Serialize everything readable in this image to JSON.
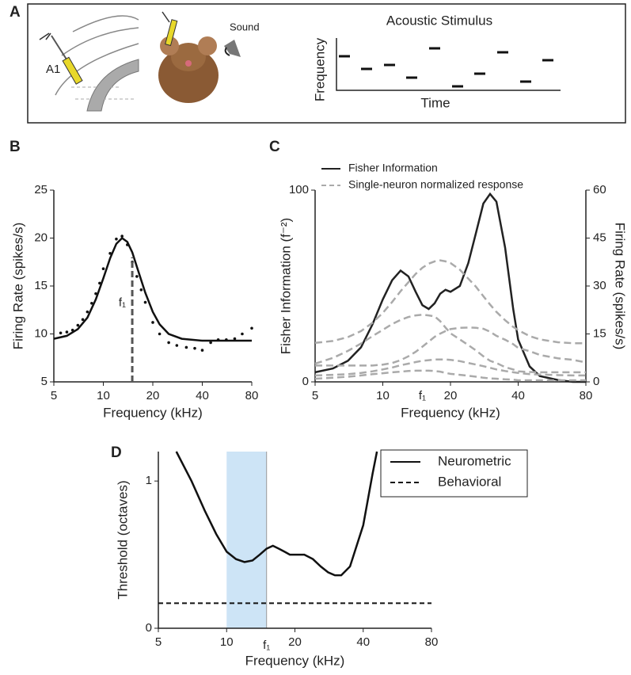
{
  "panels": [
    "A",
    "B",
    "C",
    "D"
  ],
  "schematic": {
    "region_label": "A1",
    "sound_label": "Sound",
    "stimulus_title": "Acoustic Stimulus",
    "stimulus_ylabel": "Frequency",
    "stimulus_xlabel": "Time"
  },
  "chart_data": [
    {
      "type": "line",
      "panel": "B",
      "xlabel": "Frequency (kHz)",
      "ylabel": "Firing Rate (spikes/s)",
      "xscale": "log",
      "xlim": [
        5,
        80
      ],
      "xticks": [
        5,
        10,
        20,
        40,
        80
      ],
      "ylim": [
        5,
        25
      ],
      "yticks": [
        5,
        10,
        15,
        20,
        25
      ],
      "annotations": [
        {
          "text": "f₁",
          "x": 15,
          "line_top": 18
        }
      ],
      "series": [
        {
          "color": "#111111",
          "style": "solid",
          "x": [
            5,
            6,
            7,
            8,
            9,
            10,
            11,
            12,
            13,
            14,
            15,
            16,
            18,
            20,
            22,
            25,
            30,
            40,
            60,
            80
          ],
          "values": [
            9.5,
            9.8,
            10.5,
            11.7,
            13.6,
            15.8,
            17.9,
            19.4,
            20,
            19.6,
            18.5,
            17,
            14.3,
            12.3,
            11,
            10,
            9.5,
            9.3,
            9.3,
            9.3
          ]
        },
        {
          "color": "#111111",
          "style": "dots",
          "x": [
            5.5,
            6,
            6.5,
            7,
            7.5,
            8,
            8.5,
            9,
            9.5,
            10,
            11,
            12,
            13,
            14,
            15,
            16,
            17,
            18,
            20,
            22,
            25,
            28,
            32,
            36,
            40,
            45,
            50,
            56,
            63,
            70,
            80
          ],
          "values": [
            10.1,
            10.2,
            10.4,
            10.9,
            11.5,
            12.3,
            13.2,
            14.2,
            15.3,
            16.8,
            18.4,
            19.9,
            20.2,
            19.3,
            17.5,
            16,
            14.6,
            13.3,
            11.2,
            10,
            9.1,
            8.8,
            8.6,
            8.5,
            8.3,
            9.1,
            9.4,
            9.4,
            9.5,
            10,
            10.6
          ]
        }
      ]
    },
    {
      "type": "line",
      "panel": "C",
      "xlabel": "Frequency (kHz)",
      "ylabel": "Fisher Information (f⁻²)",
      "y2label": "Firing Rate (spikes/s)",
      "xscale": "log",
      "xlim": [
        5,
        80
      ],
      "xticks": [
        5,
        10,
        20,
        40,
        80
      ],
      "ylim": [
        0,
        100
      ],
      "yticks": [
        0,
        100
      ],
      "y2lim": [
        0,
        60
      ],
      "y2ticks": [
        0,
        15,
        30,
        45,
        60
      ],
      "annotations": [
        {
          "text": "f₁",
          "x": 15
        }
      ],
      "x": [
        5,
        6,
        7,
        8,
        9,
        10,
        11,
        12,
        13,
        14,
        15,
        16,
        17,
        18,
        19,
        20,
        22,
        24,
        26,
        28,
        30,
        32,
        35,
        38,
        40,
        45,
        50,
        60,
        70,
        80
      ],
      "series": [
        {
          "name": "Fisher Information",
          "color": "#222222",
          "style": "solid",
          "axis": "y",
          "values": [
            5,
            7,
            11,
            18,
            30,
            43,
            53,
            58,
            55,
            47,
            40,
            38,
            41,
            46,
            48,
            47,
            50,
            62,
            78,
            93,
            98,
            94,
            70,
            38,
            22,
            8,
            3,
            1,
            0,
            0
          ]
        },
        {
          "name": "Single-neuron normalized response",
          "color": "#aaaaaa",
          "style": "dashed",
          "axis": "y2",
          "values": [
            12.2,
            12.8,
            14,
            15.9,
            18.5,
            21.6,
            25,
            28.4,
            31.2,
            33.8,
            35.7,
            37,
            37.7,
            38,
            37.7,
            37.2,
            35.1,
            32.3,
            29.7,
            26.8,
            24.2,
            21.9,
            19.3,
            17.2,
            16.2,
            14.3,
            13.3,
            12.4,
            12.1,
            12.1
          ]
        },
        {
          "color": "#aaaaaa",
          "style": "dashed",
          "axis": "y2",
          "values": [
            5.7,
            7.5,
            9.7,
            12,
            14.3,
            16.3,
            18.1,
            19.4,
            20.3,
            20.8,
            21,
            20.8,
            20.5,
            19,
            17,
            15.2,
            13.3,
            11.5,
            9.8,
            8,
            6.6,
            5.9,
            4.6,
            3.9,
            3.3,
            3.1,
            3,
            3,
            3,
            3
          ]
        },
        {
          "color": "#aaaaaa",
          "style": "dashed",
          "axis": "y2",
          "values": [
            5.1,
            5.1,
            5.1,
            5.1,
            5.1,
            5.4,
            5.9,
            6.8,
            8,
            9.4,
            11,
            12.6,
            14.1,
            15.1,
            15.9,
            16.5,
            16.9,
            17,
            16.9,
            16.6,
            15.7,
            14.4,
            13.2,
            11.8,
            10.6,
            9.6,
            8.4,
            7.4,
            6.9,
            6.1
          ]
        },
        {
          "color": "#aaaaaa",
          "style": "dashed",
          "axis": "y2",
          "values": [
            2,
            2.2,
            2.4,
            2.8,
            3.3,
            3.9,
            4.5,
            5.2,
            5.7,
            6.2,
            6.6,
            6.8,
            7,
            7,
            7,
            6.9,
            6.5,
            5.9,
            5.4,
            4.9,
            4.4,
            3.9,
            3.4,
            3,
            2.8,
            2.4,
            2.3,
            2.1,
            2,
            2
          ]
        },
        {
          "color": "#aaaaaa",
          "style": "dashed",
          "axis": "y2",
          "values": [
            1,
            1.3,
            1.6,
            2,
            2.4,
            2.7,
            3,
            3.2,
            3.4,
            3.5,
            3.5,
            3.5,
            3.4,
            3.2,
            2.8,
            2.5,
            2.2,
            1.9,
            1.6,
            1.3,
            1.1,
            1,
            0.8,
            0.7,
            0.5,
            0.5,
            0.5,
            0.5,
            0.5,
            0.5
          ]
        }
      ]
    },
    {
      "type": "line",
      "panel": "D",
      "xlabel": "Frequency (kHz)",
      "ylabel": "Threshold (octaves)",
      "xscale": "log",
      "xlim": [
        5,
        80
      ],
      "xticks": [
        5,
        10,
        20,
        40,
        80
      ],
      "ylim": [
        0,
        1.2
      ],
      "yticks": [
        0,
        1
      ],
      "shade": [
        10,
        15
      ],
      "shade_color": "#cde4f6",
      "legend": "top-right",
      "annotations": [
        {
          "text": "f₁",
          "x": 15
        }
      ],
      "series": [
        {
          "name": "Neurometric",
          "color": "#111111",
          "style": "solid",
          "x": [
            6,
            7,
            8,
            9,
            10,
            11,
            12,
            13,
            14,
            15,
            16,
            17,
            18,
            19,
            20,
            21,
            22,
            24,
            26,
            28,
            30,
            32,
            35,
            40,
            44,
            46
          ],
          "values": [
            1.2,
            1.0,
            0.8,
            0.64,
            0.52,
            0.47,
            0.45,
            0.46,
            0.5,
            0.54,
            0.56,
            0.54,
            0.52,
            0.5,
            0.5,
            0.5,
            0.5,
            0.47,
            0.42,
            0.38,
            0.36,
            0.36,
            0.42,
            0.7,
            1.05,
            1.2
          ]
        },
        {
          "name": "Behavioral",
          "color": "#111111",
          "style": "dashed",
          "x": [
            5,
            80
          ],
          "values": [
            0.17,
            0.17
          ]
        }
      ]
    }
  ]
}
